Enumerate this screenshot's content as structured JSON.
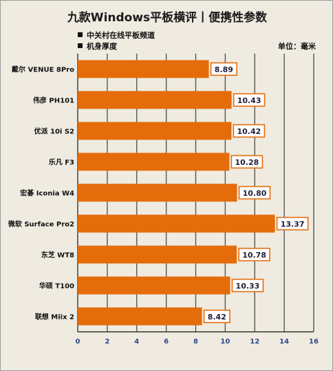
{
  "chart_data": {
    "type": "bar",
    "orientation": "horizontal",
    "title": "九款Windows平板横评丨便携性参数",
    "source": "中关村在线平板频道",
    "series_label": "机身厚度",
    "unit_label": "单位：毫米",
    "categories": [
      "戴尔 VENUE 8Pro",
      "伟彦 PH101",
      "优派 10i S2",
      "乐凡 F3",
      "宏碁 Iconia W4",
      "微软 Surface Pro2",
      "东芝 WT8",
      "华硕 T100",
      "联想 Miix 2"
    ],
    "values": [
      8.89,
      10.43,
      10.42,
      10.28,
      10.8,
      13.37,
      10.78,
      10.33,
      8.42
    ],
    "value_labels": [
      "8.89",
      "10.43",
      "10.42",
      "10.28",
      "10.80",
      "13.37",
      "10.78",
      "10.33",
      "8.42"
    ],
    "xlim": [
      0,
      16
    ],
    "xticks": [
      "0",
      "2",
      "4",
      "6",
      "8",
      "10",
      "12",
      "14",
      "16"
    ],
    "grid": "vertical",
    "colors": {
      "bar": "#e46c0a",
      "label_border": "#e46c0a",
      "tick_labels": "#2e4a8a",
      "grid": "#555555"
    }
  }
}
